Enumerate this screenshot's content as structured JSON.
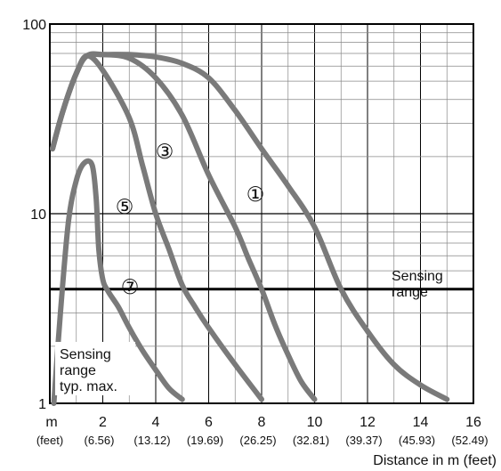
{
  "chart_data": {
    "type": "line",
    "title": "",
    "xlabel": "Distance in m (feet)",
    "ylabel": "",
    "xlim": [
      0,
      16
    ],
    "ylim": [
      1,
      100
    ],
    "yscale": "log",
    "grid": true,
    "x_unit_label": "m",
    "x_feet_unit_label": "(feet)",
    "x_ticks": [
      2,
      4,
      6,
      8,
      10,
      12,
      14,
      16
    ],
    "x_tick_labels": [
      "2",
      "4",
      "6",
      "8",
      "10",
      "12",
      "14",
      "16"
    ],
    "x_feet_labels": [
      "(6.56)",
      "(13.12)",
      "(19.69)",
      "(26.25)",
      "(32.81)",
      "(39.37)",
      "(45.93)",
      "(52.49)"
    ],
    "y_ticks": [
      1,
      10,
      100
    ],
    "y_tick_labels": [
      "1",
      "10",
      "100"
    ],
    "sensing_range_line": 4,
    "annotations": {
      "sensing_range": [
        "Sensing",
        "range"
      ],
      "sensing_range_typ_max": [
        "Sensing",
        "range",
        "typ. max."
      ]
    },
    "series": [
      {
        "marker": "①",
        "x": [
          0.1,
          0.5,
          1.0,
          1.4,
          2.0,
          3.0,
          4.0,
          5.0,
          6.0,
          7.0,
          8.0,
          9.0,
          10.0,
          11.0,
          12.0,
          13.0,
          14.0,
          15.0
        ],
        "y": [
          22,
          35,
          55,
          68,
          69,
          69,
          67,
          62,
          52,
          35,
          22,
          14,
          8.5,
          4.0,
          2.4,
          1.6,
          1.25,
          1.05
        ]
      },
      {
        "marker": "③",
        "x": [
          0.1,
          0.5,
          1.0,
          1.4,
          2.0,
          3.0,
          4.0,
          5.0,
          6.0,
          7.0,
          7.5,
          8.0,
          8.5,
          9.0,
          9.5,
          10.0
        ],
        "y": [
          22,
          35,
          55,
          68,
          69,
          66,
          52,
          33,
          16,
          8.5,
          5.8,
          4.0,
          2.6,
          1.8,
          1.3,
          1.05
        ]
      },
      {
        "marker": "⑤",
        "x": [
          0.1,
          0.5,
          1.0,
          1.4,
          2.0,
          3.0,
          3.5,
          4.0,
          4.5,
          5.0,
          5.5,
          6.0,
          7.0,
          8.0
        ],
        "y": [
          22,
          35,
          55,
          68,
          57,
          32,
          18,
          10,
          6.5,
          4.2,
          3.2,
          2.5,
          1.6,
          1.05
        ]
      },
      {
        "marker": "⑦",
        "x": [
          0.15,
          0.4,
          0.7,
          1.0,
          1.3,
          1.6,
          1.75,
          1.85,
          2.0,
          2.2,
          2.6,
          3.0,
          3.5,
          4.0,
          4.5,
          5.0
        ],
        "y": [
          1.0,
          3.0,
          9.0,
          15,
          18.5,
          18,
          12,
          6.5,
          4.5,
          3.9,
          3.2,
          2.5,
          1.9,
          1.5,
          1.2,
          1.05
        ]
      }
    ],
    "series_markers_y": [
      28.5,
      14.5,
      5.0
    ]
  }
}
